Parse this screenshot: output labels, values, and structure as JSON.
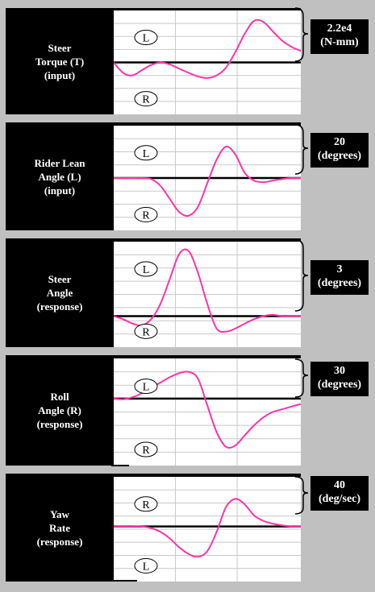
{
  "colors": {
    "curve": "#ff33aa",
    "grid": "#c8c8c8",
    "axis": "#000000",
    "bracket": "#000000"
  },
  "chart_data": [
    {
      "type": "line",
      "title": "Steer\nTorque (T)\n(input)",
      "scale": "2.2e4\n(N-mm)",
      "upper_marker": "L",
      "lower_marker": "R",
      "ylim": [
        -1,
        1
      ],
      "x": [
        0,
        5,
        10,
        15,
        20,
        25,
        30,
        35,
        40,
        45,
        50,
        55,
        60,
        65,
        70,
        75,
        80,
        85,
        90,
        95,
        100
      ],
      "values": [
        0,
        -0.2,
        -0.25,
        -0.15,
        -0.05,
        0.0,
        -0.04,
        -0.12,
        -0.2,
        -0.27,
        -0.3,
        -0.25,
        -0.1,
        0.2,
        0.55,
        0.8,
        0.78,
        0.6,
        0.42,
        0.3,
        0.22
      ]
    },
    {
      "type": "line",
      "title": "Rider Lean\nAngle (L)\n(input)",
      "scale": "20\n(degrees)",
      "upper_marker": "L",
      "lower_marker": "R",
      "ylim": [
        -1,
        1
      ],
      "x": [
        0,
        5,
        10,
        15,
        20,
        25,
        30,
        35,
        40,
        45,
        50,
        55,
        60,
        65,
        70,
        75,
        80,
        85,
        90,
        95,
        100
      ],
      "values": [
        0,
        0,
        0,
        0,
        -0.02,
        -0.15,
        -0.4,
        -0.65,
        -0.72,
        -0.55,
        -0.1,
        0.35,
        0.6,
        0.45,
        0.1,
        -0.05,
        -0.08,
        -0.05,
        -0.02,
        0,
        0
      ]
    },
    {
      "type": "line",
      "title": "Steer\nAngle\n(response)",
      "scale": "3\n(degrees)",
      "upper_marker": "L",
      "lower_marker": "R",
      "ylim": [
        -0.5,
        1.2
      ],
      "x": [
        0,
        5,
        10,
        15,
        20,
        25,
        30,
        35,
        40,
        45,
        50,
        55,
        60,
        65,
        70,
        75,
        80,
        85,
        90,
        95,
        100
      ],
      "values": [
        0,
        -0.05,
        -0.12,
        -0.15,
        -0.05,
        0.2,
        0.6,
        1.0,
        1.05,
        0.7,
        0.2,
        -0.2,
        -0.25,
        -0.2,
        -0.12,
        -0.05,
        0,
        0.02,
        0,
        0,
        0
      ]
    },
    {
      "type": "line",
      "title": "Roll\nAngle (R)\n(response)",
      "scale": "30\n(degrees)",
      "upper_marker": "L",
      "lower_marker": "R",
      "ylim": [
        -1,
        0.6
      ],
      "x": [
        0,
        5,
        10,
        15,
        20,
        25,
        30,
        35,
        40,
        45,
        50,
        55,
        60,
        65,
        70,
        75,
        80,
        85,
        90,
        95,
        100
      ],
      "values": [
        0,
        -0.01,
        0.02,
        0.08,
        0.16,
        0.24,
        0.32,
        0.38,
        0.4,
        0.3,
        -0.1,
        -0.5,
        -0.72,
        -0.7,
        -0.55,
        -0.4,
        -0.28,
        -0.2,
        -0.16,
        -0.12,
        -0.08
      ]
    },
    {
      "type": "line",
      "title": "Yaw\nRate\n(response)",
      "scale": "40\n(deg/sec)",
      "upper_marker": "R",
      "lower_marker": "L",
      "ylim": [
        -1,
        0.9
      ],
      "x": [
        0,
        5,
        10,
        15,
        20,
        25,
        30,
        35,
        40,
        45,
        50,
        55,
        60,
        65,
        70,
        75,
        80,
        85,
        90,
        95,
        100
      ],
      "values": [
        0,
        0,
        0,
        0,
        -0.03,
        -0.1,
        -0.22,
        -0.38,
        -0.5,
        -0.55,
        -0.45,
        -0.1,
        0.35,
        0.5,
        0.4,
        0.2,
        0.1,
        0.05,
        0.02,
        0,
        0
      ]
    }
  ]
}
